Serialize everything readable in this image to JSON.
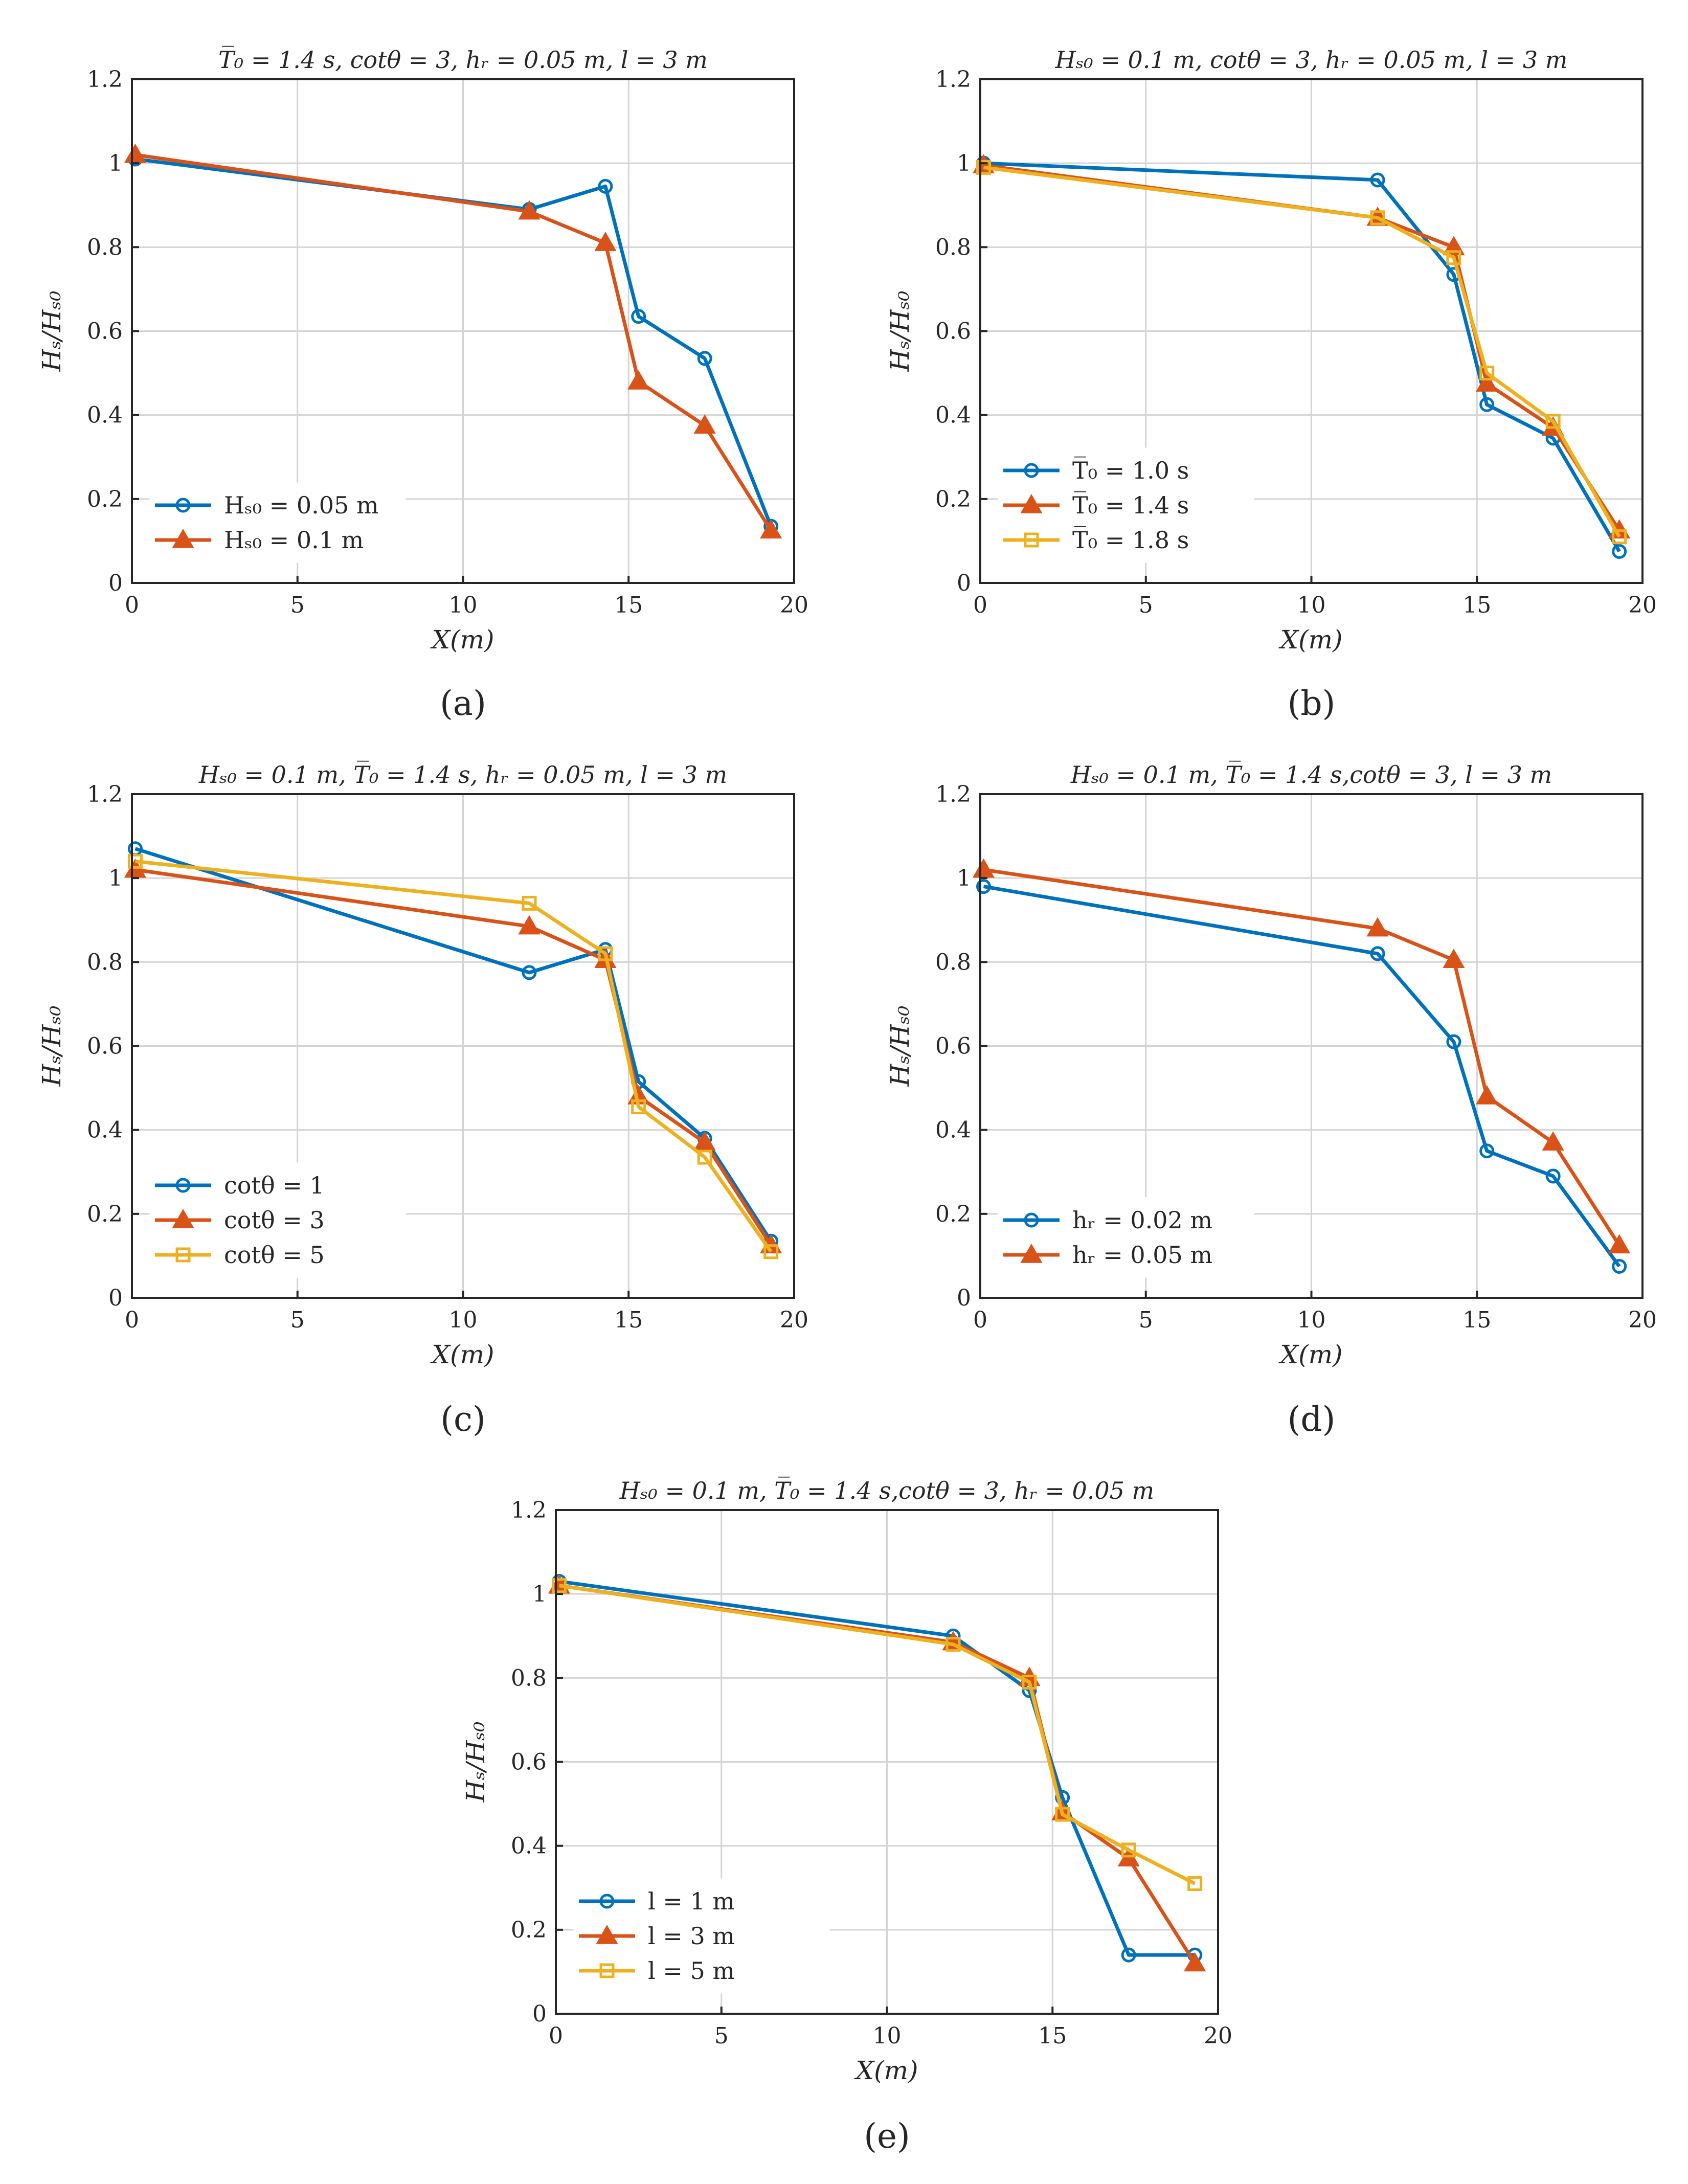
{
  "chart_data": [
    {
      "panel": "(a)",
      "type": "line",
      "title": "T̅₀ = 1.4 s, cotθ = 3, hᵣ = 0.05 m, l = 3 m",
      "xlabel": "X(m)",
      "ylabel": "Hₛ/Hₛ₀",
      "xlim": [
        0,
        20
      ],
      "ylim": [
        0,
        1.2
      ],
      "xticks": [
        "0",
        "5",
        "10",
        "15",
        "20"
      ],
      "yticks": [
        "0",
        "0.2",
        "0.4",
        "0.6",
        "0.8",
        "1",
        "1.2"
      ],
      "x": [
        0.1,
        12,
        14.3,
        15.3,
        17.3,
        19.3
      ],
      "series": [
        {
          "name": "Hₛ₀ = 0.05 m",
          "color": "#0072BD",
          "marker": "circle",
          "values": [
            1.01,
            0.89,
            0.945,
            0.635,
            0.535,
            0.135
          ]
        },
        {
          "name": "Hₛ₀ = 0.1 m",
          "color": "#D95319",
          "marker": "triangle",
          "values": [
            1.02,
            0.885,
            0.81,
            0.48,
            0.375,
            0.125
          ]
        }
      ],
      "legend": "bottom-left"
    },
    {
      "panel": "(b)",
      "type": "line",
      "title": "Hₛ₀ = 0.1 m, cotθ = 3, hᵣ = 0.05 m, l = 3 m",
      "xlabel": "X(m)",
      "ylabel": "Hₛ/Hₛ₀",
      "xlim": [
        0,
        20
      ],
      "ylim": [
        0,
        1.2
      ],
      "xticks": [
        "0",
        "5",
        "10",
        "15",
        "20"
      ],
      "yticks": [
        "0",
        "0.2",
        "0.4",
        "0.6",
        "0.8",
        "1",
        "1.2"
      ],
      "x": [
        0.1,
        12,
        14.3,
        15.3,
        17.3,
        19.3
      ],
      "series": [
        {
          "name": "T̅₀ = 1.0 s",
          "color": "#0072BD",
          "marker": "circle",
          "values": [
            1.0,
            0.96,
            0.735,
            0.425,
            0.345,
            0.075
          ]
        },
        {
          "name": "T̅₀ = 1.4 s",
          "color": "#D95319",
          "marker": "triangle",
          "values": [
            0.995,
            0.87,
            0.8,
            0.475,
            0.37,
            0.125
          ]
        },
        {
          "name": "T̅₀ = 1.8 s",
          "color": "#EDB120",
          "marker": "square",
          "values": [
            0.99,
            0.87,
            0.775,
            0.5,
            0.385,
            0.11
          ]
        }
      ],
      "legend": "bottom-left"
    },
    {
      "panel": "(c)",
      "type": "line",
      "title": "Hₛ₀ = 0.1 m, T̅₀ = 1.4 s, hᵣ = 0.05 m, l = 3 m",
      "xlabel": "X(m)",
      "ylabel": "Hₛ/Hₛ₀",
      "xlim": [
        0,
        20
      ],
      "ylim": [
        0,
        1.2
      ],
      "xticks": [
        "0",
        "5",
        "10",
        "15",
        "20"
      ],
      "yticks": [
        "0",
        "0.2",
        "0.4",
        "0.6",
        "0.8",
        "1",
        "1.2"
      ],
      "x": [
        0.1,
        12,
        14.3,
        15.3,
        17.3,
        19.3
      ],
      "series": [
        {
          "name": "cotθ = 1",
          "color": "#0072BD",
          "marker": "circle",
          "values": [
            1.07,
            0.775,
            0.83,
            0.515,
            0.38,
            0.135
          ]
        },
        {
          "name": "cotθ = 3",
          "color": "#D95319",
          "marker": "triangle",
          "values": [
            1.02,
            0.885,
            0.805,
            0.48,
            0.37,
            0.125
          ]
        },
        {
          "name": "cotθ = 5",
          "color": "#EDB120",
          "marker": "square",
          "values": [
            1.04,
            0.94,
            0.82,
            0.455,
            0.335,
            0.11
          ]
        }
      ],
      "legend": "bottom-left"
    },
    {
      "panel": "(d)",
      "type": "line",
      "title": "Hₛ₀ = 0.1 m, T̅₀ = 1.4 s,cotθ = 3, l = 3 m",
      "xlabel": "X(m)",
      "ylabel": "Hₛ/Hₛ₀",
      "xlim": [
        0,
        20
      ],
      "ylim": [
        0,
        1.2
      ],
      "xticks": [
        "0",
        "5",
        "10",
        "15",
        "20"
      ],
      "yticks": [
        "0",
        "0.2",
        "0.4",
        "0.6",
        "0.8",
        "1",
        "1.2"
      ],
      "x": [
        0.1,
        12,
        14.3,
        15.3,
        17.3,
        19.3
      ],
      "series": [
        {
          "name": "hᵣ = 0.02 m",
          "color": "#0072BD",
          "marker": "circle",
          "values": [
            0.98,
            0.82,
            0.61,
            0.35,
            0.29,
            0.075
          ]
        },
        {
          "name": "hᵣ = 0.05 m",
          "color": "#D95319",
          "marker": "triangle",
          "values": [
            1.02,
            0.88,
            0.805,
            0.48,
            0.37,
            0.125
          ]
        }
      ],
      "legend": "bottom-left"
    },
    {
      "panel": "(e)",
      "type": "line",
      "title": "Hₛ₀ = 0.1 m, T̅₀ = 1.4 s,cotθ = 3, hᵣ = 0.05 m",
      "xlabel": "X(m)",
      "ylabel": "Hₛ/Hₛ₀",
      "xlim": [
        0,
        20
      ],
      "ylim": [
        0,
        1.2
      ],
      "xticks": [
        "0",
        "5",
        "10",
        "15",
        "20"
      ],
      "yticks": [
        "0",
        "0.2",
        "0.4",
        "0.6",
        "0.8",
        "1",
        "1.2"
      ],
      "x": [
        0.1,
        12,
        14.3,
        15.3,
        17.3,
        19.3
      ],
      "series": [
        {
          "name": "l = 1 m",
          "color": "#0072BD",
          "marker": "circle",
          "values": [
            1.03,
            0.9,
            0.77,
            0.515,
            0.14,
            0.14
          ]
        },
        {
          "name": "l = 3 m",
          "color": "#D95319",
          "marker": "triangle",
          "values": [
            1.02,
            0.885,
            0.8,
            0.48,
            0.37,
            0.12
          ]
        },
        {
          "name": "l = 5 m",
          "color": "#EDB120",
          "marker": "square",
          "values": [
            1.02,
            0.88,
            0.79,
            0.475,
            0.39,
            0.31
          ]
        }
      ],
      "legend": "bottom-left"
    }
  ]
}
